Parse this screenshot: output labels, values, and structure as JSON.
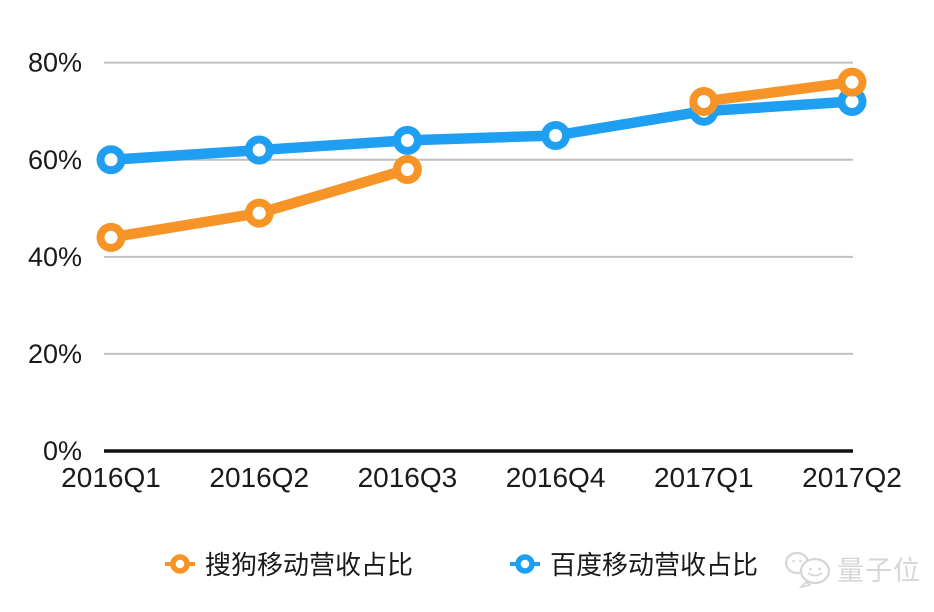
{
  "chart_data": {
    "type": "line",
    "categories": [
      "2016Q1",
      "2016Q2",
      "2016Q3",
      "2016Q4",
      "2017Q1",
      "2017Q2"
    ],
    "series": [
      {
        "name": "搜狗移动营收占比",
        "color": "#f79428",
        "values": [
          44,
          49,
          58,
          null,
          72,
          76
        ]
      },
      {
        "name": "百度移动营收占比",
        "color": "#1e9ff2",
        "values": [
          60,
          62,
          64,
          65,
          70,
          72
        ]
      }
    ],
    "title": "",
    "xlabel": "",
    "ylabel": "",
    "yticks": [
      0,
      20,
      40,
      60,
      80
    ],
    "ytick_labels": [
      "0%",
      "20%",
      "40%",
      "60%",
      "80%"
    ],
    "ylim": [
      0,
      88
    ],
    "grid": true,
    "legend_position": "bottom",
    "marker_style": "ring",
    "grid_color": "#bfbfbf",
    "axis_color": "#111111",
    "text_color": "#1a1a1a"
  },
  "watermark": {
    "text": "量子位",
    "logo": "qbitai-logo"
  }
}
